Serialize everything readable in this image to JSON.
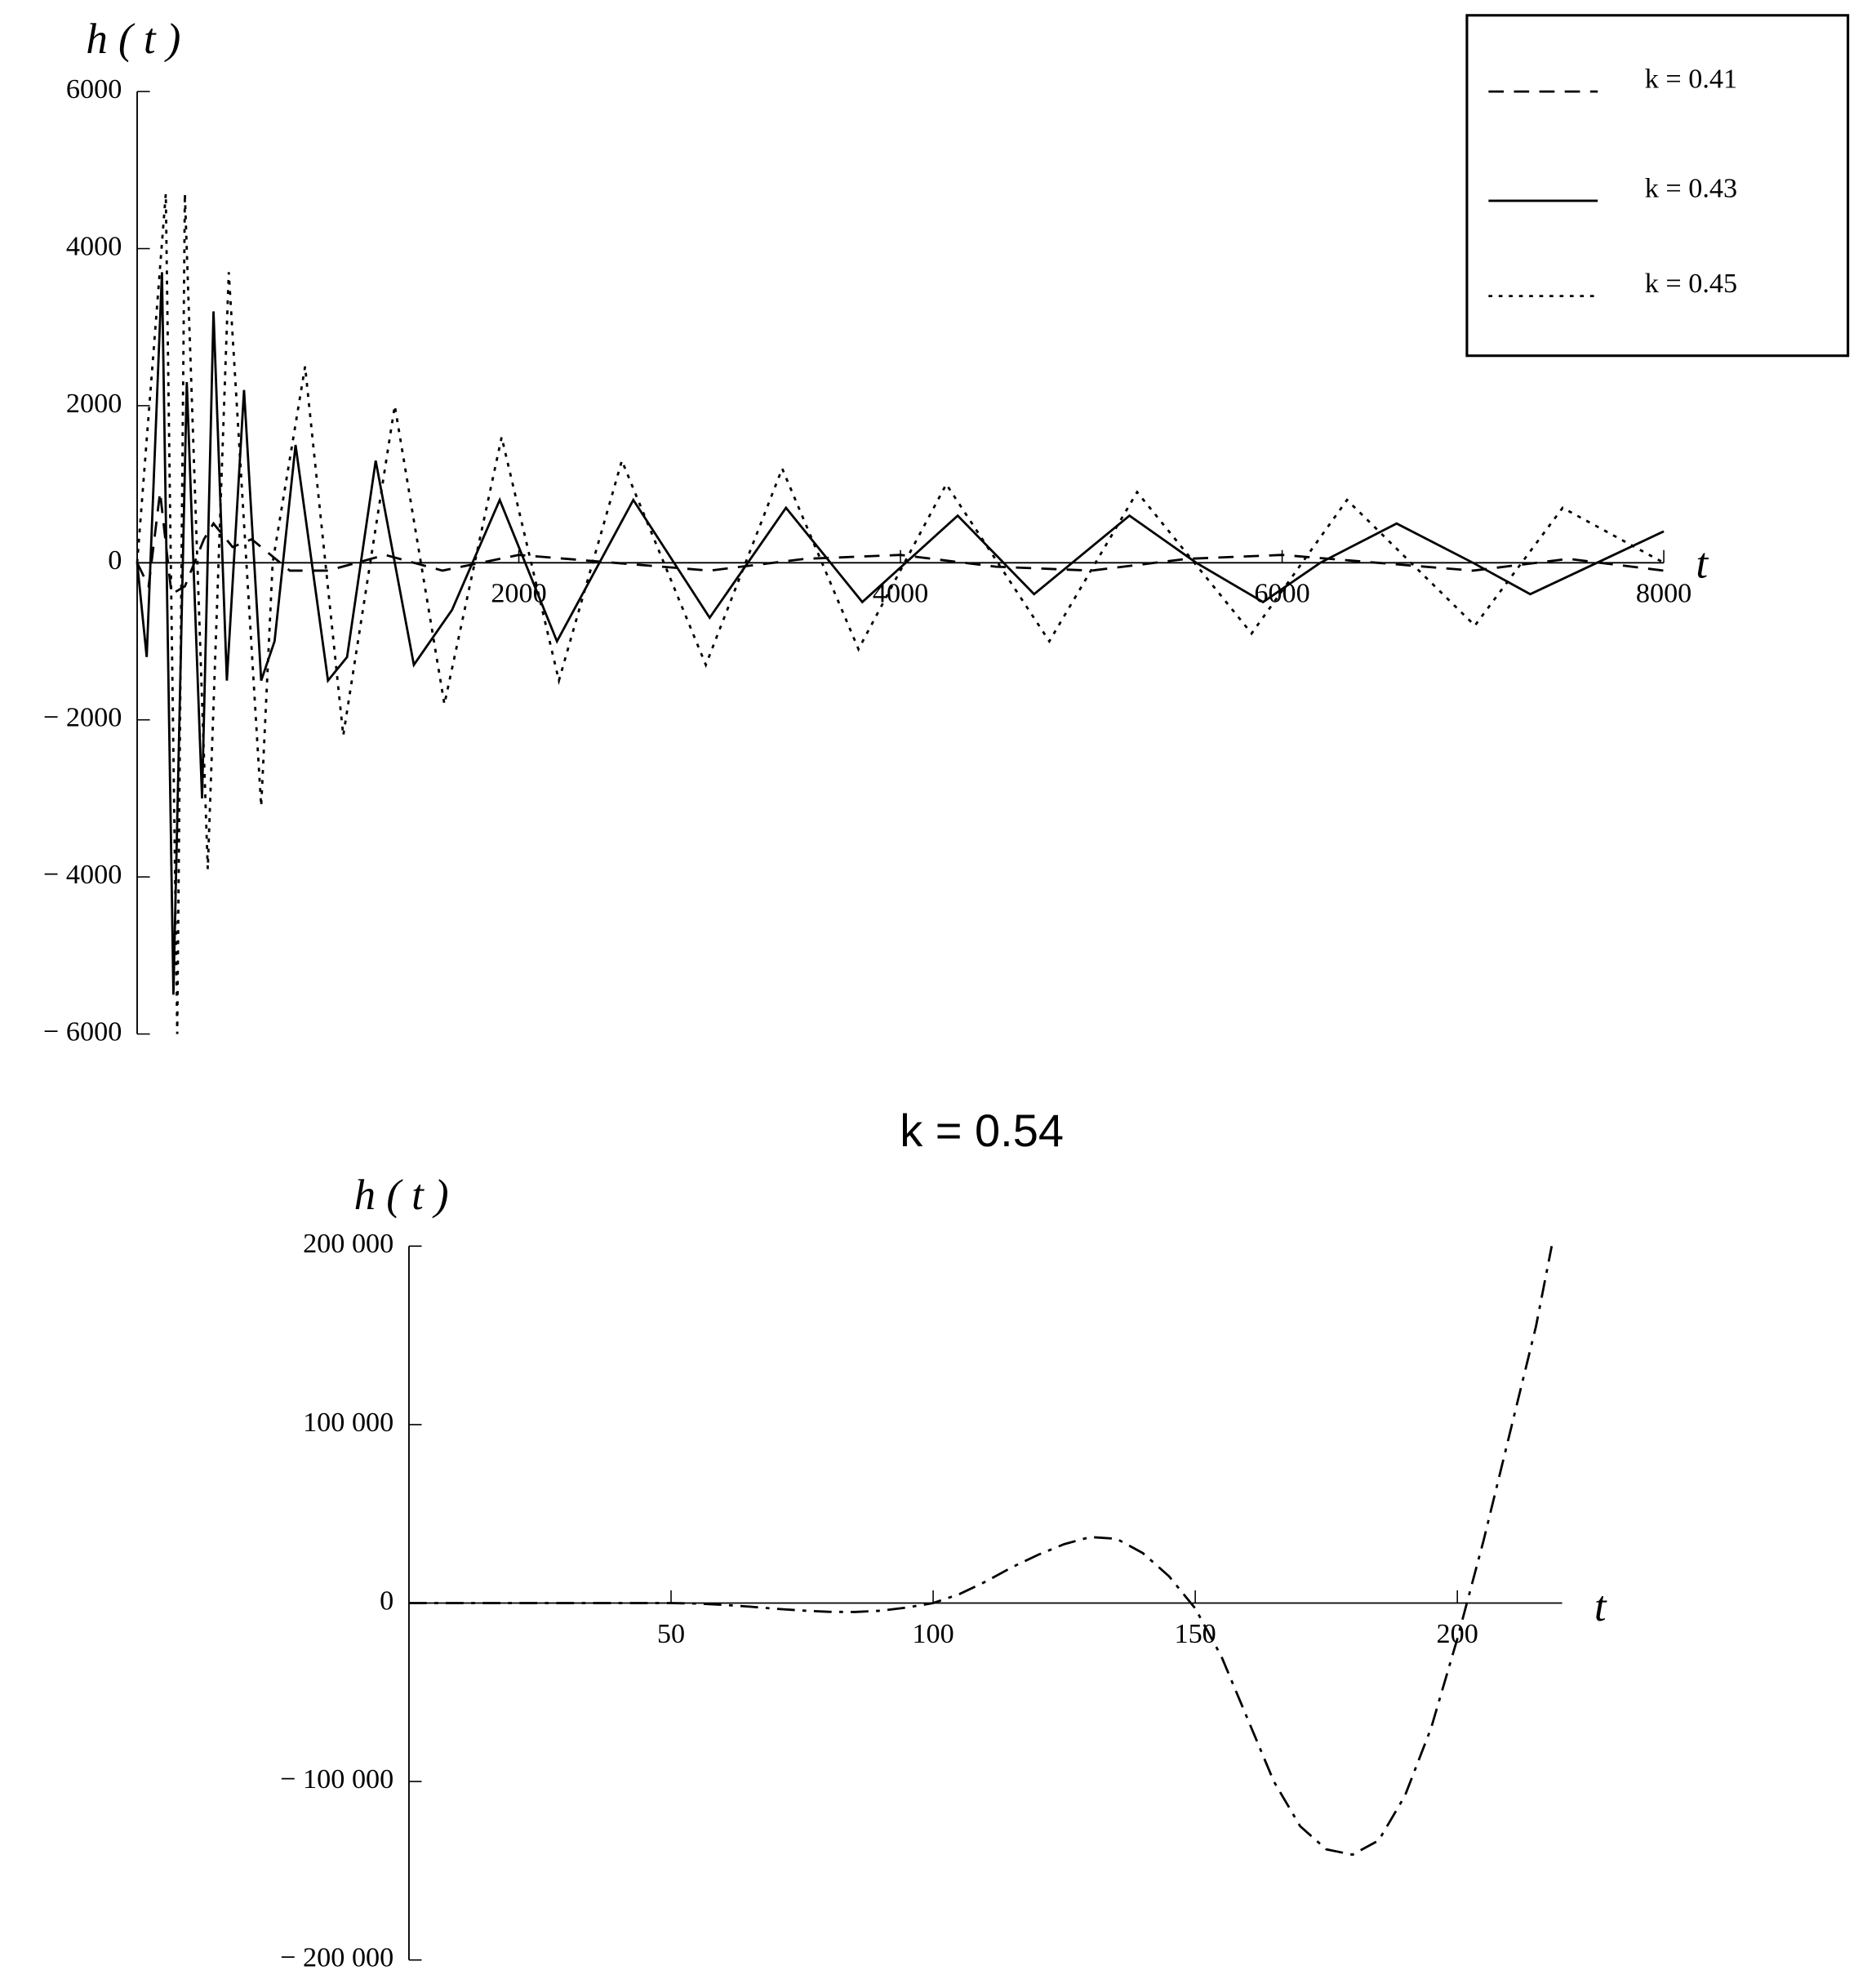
{
  "chart_data": [
    {
      "type": "line",
      "y_label": "h ( t )",
      "x_label": "t",
      "xlim": [
        0,
        8000
      ],
      "ylim": [
        -6000,
        6000
      ],
      "xticks": [
        2000,
        4000,
        6000,
        8000
      ],
      "yticks": [
        {
          "value": -6000,
          "label": "− 6000"
        },
        {
          "value": -4000,
          "label": "− 4000"
        },
        {
          "value": -2000,
          "label": "− 2000"
        },
        0,
        2000,
        4000,
        6000
      ],
      "legend": "top-right",
      "series": [
        {
          "name": "k = 0.41",
          "color": "#000000",
          "dash": "dashed",
          "x": [
            0,
            60,
            120,
            180,
            250,
            350,
            400,
            500,
            600,
            800,
            1000,
            1300,
            1600,
            2000,
            2500,
            3000,
            3500,
            4000,
            4500,
            5000,
            5500,
            6000,
            6500,
            7000,
            7500,
            8000
          ],
          "values": [
            0,
            -300,
            900,
            -400,
            -300,
            300,
            500,
            200,
            300,
            -100,
            -100,
            100,
            -100,
            100,
            0,
            -100,
            50,
            100,
            -50,
            -100,
            50,
            100,
            0,
            -100,
            50,
            -100
          ]
        },
        {
          "name": "k = 0.43",
          "color": "#000000",
          "dash": "solid",
          "x": [
            0,
            50,
            130,
            190,
            260,
            340,
            400,
            470,
            560,
            650,
            720,
            830,
            1000,
            1100,
            1250,
            1450,
            1650,
            1900,
            2200,
            2600,
            3000,
            3400,
            3800,
            4300,
            4700,
            5200,
            5550,
            5900,
            6200,
            6600,
            7000,
            7300,
            7650,
            8000
          ],
          "values": [
            0,
            -1200,
            3700,
            -5500,
            2300,
            -3000,
            3200,
            -1500,
            2200,
            -1500,
            -1000,
            1500,
            -1500,
            -1200,
            1300,
            -1300,
            -600,
            800,
            -1000,
            800,
            -700,
            700,
            -500,
            600,
            -400,
            600,
            0,
            -500,
            0,
            500,
            0,
            -400,
            0,
            400
          ]
        },
        {
          "name": "k = 0.45",
          "color": "#000000",
          "dash": "dotted",
          "x": [
            0,
            150,
            210,
            250,
            370,
            480,
            650,
            710,
            880,
            1080,
            1350,
            1610,
            1910,
            2210,
            2540,
            2980,
            3380,
            3780,
            4240,
            4780,
            5240,
            5840,
            6340,
            7010,
            7470,
            8000
          ],
          "values": [
            0,
            4700,
            -6000,
            4700,
            -3900,
            3700,
            -3100,
            0,
            2500,
            -2200,
            2000,
            -1800,
            1600,
            -1500,
            1300,
            -1300,
            1200,
            -1100,
            1000,
            -1000,
            900,
            -900,
            800,
            -800,
            700,
            0
          ]
        }
      ]
    },
    {
      "type": "line",
      "title": "k = 0.54",
      "y_label": "h ( t )",
      "x_label": "t",
      "xlim": [
        0,
        220
      ],
      "ylim": [
        -200000,
        200000
      ],
      "xticks": [
        50,
        100,
        150,
        200
      ],
      "yticks": [
        {
          "value": -200000,
          "label": "− 200 000"
        },
        {
          "value": -100000,
          "label": "− 100 000"
        },
        0,
        {
          "value": 100000,
          "label": "100 000"
        },
        {
          "value": 200000,
          "label": "200 000"
        }
      ],
      "x": [
        0,
        10,
        20,
        30,
        40,
        50,
        55,
        60,
        65,
        70,
        75,
        80,
        85,
        90,
        95,
        100,
        105,
        110,
        115,
        120,
        125,
        130,
        135,
        140,
        145,
        150,
        155,
        160,
        165,
        170,
        175,
        180,
        185,
        190,
        195,
        200,
        205,
        210,
        215,
        218
      ],
      "series": [
        {
          "color": "#000000",
          "dash": "dashdot",
          "values": [
            0,
            0,
            0,
            0,
            0,
            0,
            -300,
            -1000,
            -2000,
            -3200,
            -4200,
            -4900,
            -5000,
            -4300,
            -2500,
            0,
            5000,
            12000,
            20000,
            27000,
            33000,
            37000,
            36000,
            28000,
            15000,
            -3000,
            -30000,
            -65000,
            -100000,
            -125000,
            -138000,
            -141000,
            -133000,
            -108000,
            -70000,
            -20000,
            35000,
            95000,
            155000,
            200000
          ]
        }
      ]
    }
  ]
}
